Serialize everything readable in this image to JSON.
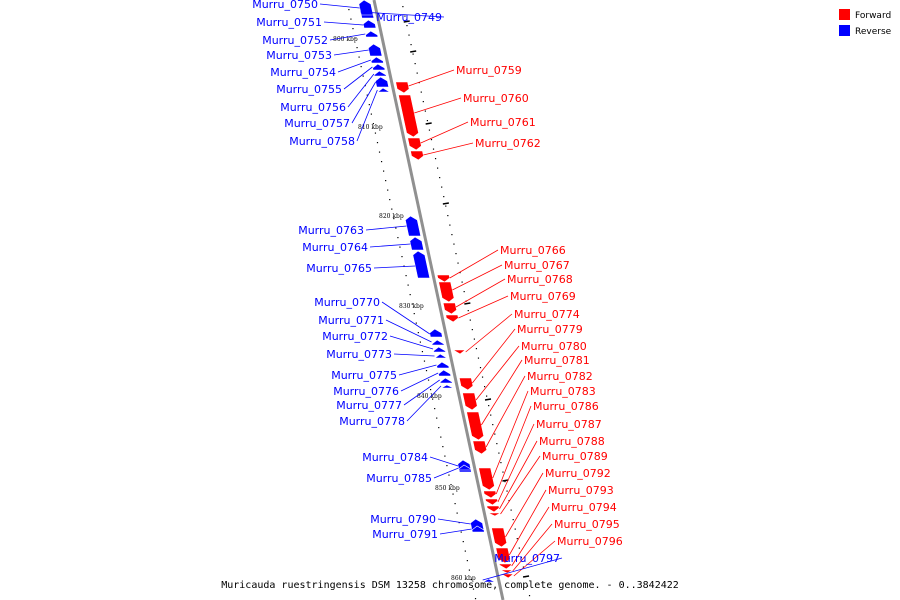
{
  "legend": {
    "forward_label": "Forward",
    "reverse_label": "Reverse",
    "forward_color": "#ff0000",
    "reverse_color": "#0000ff"
  },
  "caption": "Muricauda ruestringensis DSM 13258 chromosome, complete genome. - 0..3842422",
  "scale_labels": [
    "800 kbp",
    "810 kbp",
    "820 kbp",
    "830 kbp",
    "840 kbp",
    "850 kbp",
    "860 kbp"
  ],
  "genes": [
    {
      "name": "Murru_0749",
      "strand": "reverse"
    },
    {
      "name": "Murru_0750",
      "strand": "reverse"
    },
    {
      "name": "Murru_0751",
      "strand": "reverse"
    },
    {
      "name": "Murru_0752",
      "strand": "reverse"
    },
    {
      "name": "Murru_0753",
      "strand": "reverse"
    },
    {
      "name": "Murru_0754",
      "strand": "reverse"
    },
    {
      "name": "Murru_0755",
      "strand": "reverse"
    },
    {
      "name": "Murru_0756",
      "strand": "reverse"
    },
    {
      "name": "Murru_0757",
      "strand": "reverse"
    },
    {
      "name": "Murru_0758",
      "strand": "reverse"
    },
    {
      "name": "Murru_0759",
      "strand": "forward"
    },
    {
      "name": "Murru_0760",
      "strand": "forward"
    },
    {
      "name": "Murru_0761",
      "strand": "forward"
    },
    {
      "name": "Murru_0762",
      "strand": "forward"
    },
    {
      "name": "Murru_0763",
      "strand": "reverse"
    },
    {
      "name": "Murru_0764",
      "strand": "reverse"
    },
    {
      "name": "Murru_0765",
      "strand": "reverse"
    },
    {
      "name": "Murru_0766",
      "strand": "forward"
    },
    {
      "name": "Murru_0767",
      "strand": "forward"
    },
    {
      "name": "Murru_0768",
      "strand": "forward"
    },
    {
      "name": "Murru_0769",
      "strand": "forward"
    },
    {
      "name": "Murru_0770",
      "strand": "reverse"
    },
    {
      "name": "Murru_0771",
      "strand": "reverse"
    },
    {
      "name": "Murru_0772",
      "strand": "reverse"
    },
    {
      "name": "Murru_0773",
      "strand": "reverse"
    },
    {
      "name": "Murru_0774",
      "strand": "forward"
    },
    {
      "name": "Murru_0775",
      "strand": "reverse"
    },
    {
      "name": "Murru_0776",
      "strand": "reverse"
    },
    {
      "name": "Murru_0777",
      "strand": "reverse"
    },
    {
      "name": "Murru_0778",
      "strand": "reverse"
    },
    {
      "name": "Murru_0779",
      "strand": "forward"
    },
    {
      "name": "Murru_0780",
      "strand": "forward"
    },
    {
      "name": "Murru_0781",
      "strand": "forward"
    },
    {
      "name": "Murru_0782",
      "strand": "forward"
    },
    {
      "name": "Murru_0783",
      "strand": "forward"
    },
    {
      "name": "Murru_0784",
      "strand": "reverse"
    },
    {
      "name": "Murru_0785",
      "strand": "reverse"
    },
    {
      "name": "Murru_0786",
      "strand": "forward"
    },
    {
      "name": "Murru_0787",
      "strand": "forward"
    },
    {
      "name": "Murru_0788",
      "strand": "forward"
    },
    {
      "name": "Murru_0789",
      "strand": "forward"
    },
    {
      "name": "Murru_0790",
      "strand": "reverse"
    },
    {
      "name": "Murru_0791",
      "strand": "reverse"
    },
    {
      "name": "Murru_0792",
      "strand": "forward"
    },
    {
      "name": "Murru_0793",
      "strand": "forward"
    },
    {
      "name": "Murru_0794",
      "strand": "forward"
    },
    {
      "name": "Murru_0795",
      "strand": "forward"
    },
    {
      "name": "Murru_0796",
      "strand": "forward"
    },
    {
      "name": "Murru_0797",
      "strand": "reverse"
    }
  ]
}
